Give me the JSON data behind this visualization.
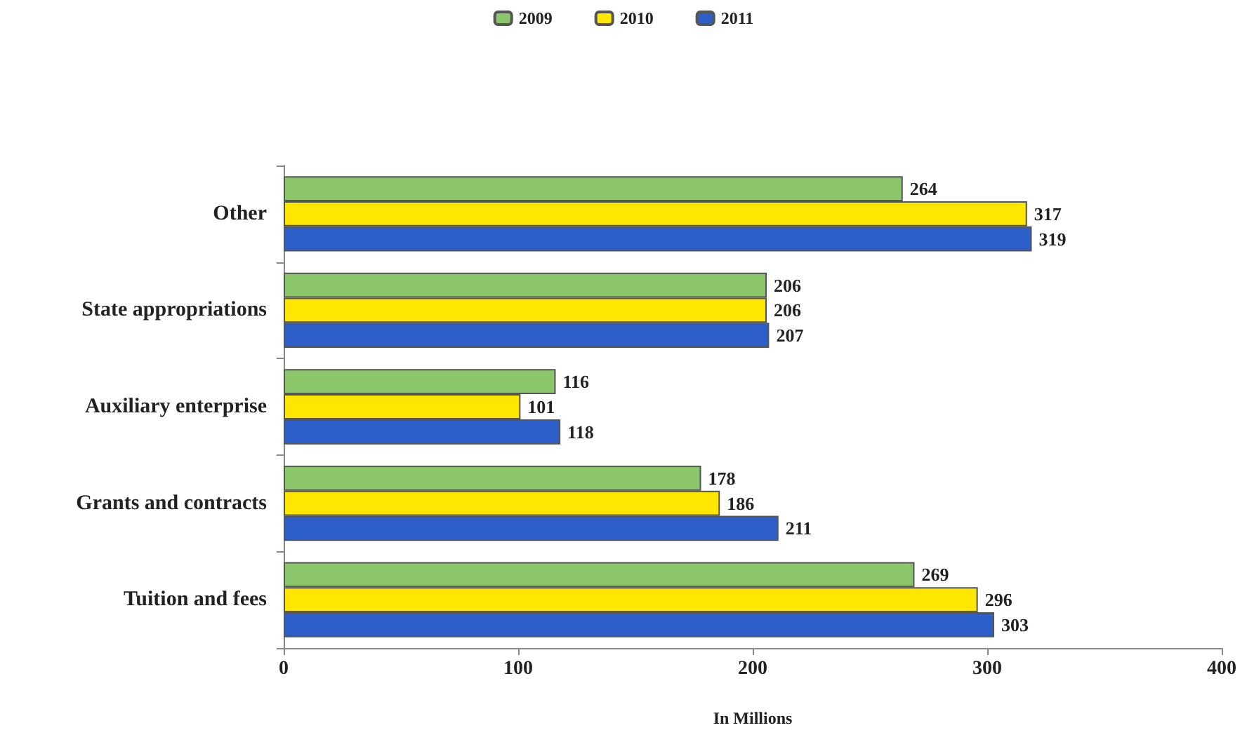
{
  "chart_data": {
    "type": "bar",
    "orientation": "horizontal",
    "xlabel": "In Millions",
    "categories": [
      "Other",
      "State appropriations",
      "Auxiliary enterprise",
      "Grants and contracts",
      "Tuition and fees"
    ],
    "series": [
      {
        "name": "2009",
        "color": "#8cc66a",
        "values": [
          264,
          206,
          116,
          178,
          269
        ]
      },
      {
        "name": "2010",
        "color": "#fde600",
        "values": [
          317,
          206,
          101,
          186,
          296
        ]
      },
      {
        "name": "2011",
        "color": "#2e5fc8",
        "values": [
          319,
          207,
          118,
          211,
          303
        ]
      }
    ],
    "xlim": [
      0,
      400
    ],
    "xticks": [
      0,
      100,
      200,
      300,
      400
    ],
    "data_labels": true,
    "legend": "top",
    "grid": false
  }
}
